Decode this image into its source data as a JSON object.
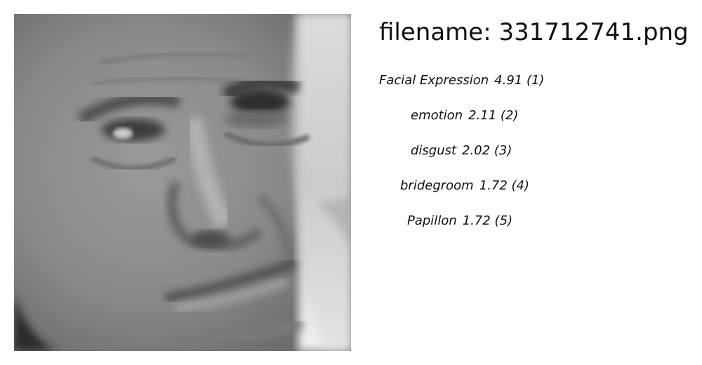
{
  "image": {
    "subject_icon": "face-photo"
  },
  "header": {
    "filename_prefix": "filename: ",
    "filename": "331712741.png"
  },
  "predictions": [
    {
      "label": "Facial Expression",
      "score": "4.91",
      "rank": "(1)"
    },
    {
      "label": "emotion",
      "score": "2.11",
      "rank": "(2)"
    },
    {
      "label": "disgust",
      "score": "2.02",
      "rank": "(3)"
    },
    {
      "label": "bridegroom",
      "score": "1.72",
      "rank": "(4)"
    },
    {
      "label": "Papillon",
      "score": "1.72",
      "rank": "(5)"
    }
  ]
}
